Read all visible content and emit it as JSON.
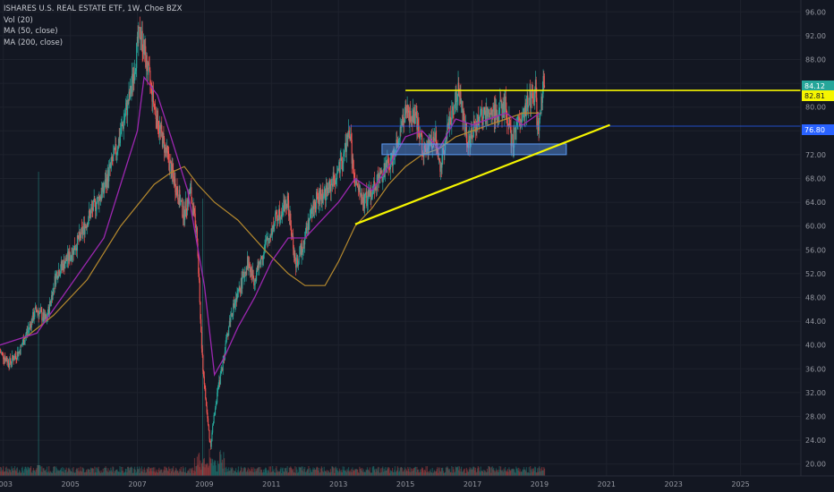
{
  "legend": {
    "title": "ISHARES U.S. REAL ESTATE ETF, 1W, Choe BZX",
    "vol": "Vol (20)",
    "ma50": "MA (50, close)",
    "ma200": "MA (200, close)"
  },
  "chart_data": {
    "type": "candlestick",
    "title": "ISHARES U.S. REAL ESTATE ETF, 1W, Choe BZX",
    "x_axis_labels": [
      "2003",
      "2005",
      "2007",
      "2009",
      "2011",
      "2013",
      "2015",
      "2017",
      "2019",
      "2021",
      "2023",
      "2025"
    ],
    "y_axis_labels": [
      "20.00",
      "24.00",
      "28.00",
      "32.00",
      "36.00",
      "40.00",
      "44.00",
      "48.00",
      "52.00",
      "56.00",
      "60.00",
      "64.00",
      "68.00",
      "72.00",
      "76.00",
      "80.00",
      "84.00",
      "88.00",
      "92.00",
      "96.00"
    ],
    "ylim": [
      18,
      98
    ],
    "xlim": [
      2002.9,
      2026.8
    ],
    "price_keypoints": [
      [
        2002.9,
        39
      ],
      [
        2003.2,
        37
      ],
      [
        2003.5,
        39
      ],
      [
        2004.0,
        46
      ],
      [
        2004.3,
        44
      ],
      [
        2004.6,
        52
      ],
      [
        2005.0,
        55
      ],
      [
        2005.3,
        58
      ],
      [
        2005.6,
        62
      ],
      [
        2006.0,
        66
      ],
      [
        2006.4,
        73
      ],
      [
        2006.8,
        82
      ],
      [
        2007.1,
        93
      ],
      [
        2007.3,
        87
      ],
      [
        2007.6,
        78
      ],
      [
        2007.9,
        72
      ],
      [
        2008.2,
        66
      ],
      [
        2008.4,
        62
      ],
      [
        2008.6,
        66
      ],
      [
        2008.8,
        58
      ],
      [
        2008.95,
        38
      ],
      [
        2009.1,
        28
      ],
      [
        2009.2,
        23
      ],
      [
        2009.35,
        30
      ],
      [
        2009.6,
        38
      ],
      [
        2009.8,
        45
      ],
      [
        2010.0,
        48
      ],
      [
        2010.3,
        54
      ],
      [
        2010.5,
        51
      ],
      [
        2010.8,
        56
      ],
      [
        2011.2,
        62
      ],
      [
        2011.5,
        64
      ],
      [
        2011.75,
        53
      ],
      [
        2011.9,
        56
      ],
      [
        2012.3,
        64
      ],
      [
        2012.7,
        66
      ],
      [
        2013.1,
        70
      ],
      [
        2013.35,
        76
      ],
      [
        2013.5,
        67
      ],
      [
        2013.8,
        64
      ],
      [
        2014.2,
        68
      ],
      [
        2014.6,
        71
      ],
      [
        2015.0,
        79
      ],
      [
        2015.3,
        78
      ],
      [
        2015.6,
        72
      ],
      [
        2015.9,
        75
      ],
      [
        2016.05,
        70
      ],
      [
        2016.3,
        77
      ],
      [
        2016.6,
        83
      ],
      [
        2016.9,
        74
      ],
      [
        2017.2,
        78
      ],
      [
        2017.6,
        79
      ],
      [
        2018.0,
        80
      ],
      [
        2018.2,
        74
      ],
      [
        2018.5,
        79
      ],
      [
        2018.9,
        83
      ],
      [
        2018.97,
        75
      ],
      [
        2019.1,
        83
      ],
      [
        2019.15,
        85
      ]
    ],
    "last_price": 84.12,
    "price_labels": [
      {
        "text": "84.12",
        "color": "#26a69a"
      },
      {
        "text": "82.81",
        "color": "#f5f500"
      },
      {
        "text": "76.80",
        "color": "#2962ff"
      }
    ],
    "ma_50": [
      [
        2002.9,
        40
      ],
      [
        2004.0,
        42
      ],
      [
        2005.0,
        50
      ],
      [
        2006.0,
        58
      ],
      [
        2007.0,
        76
      ],
      [
        2007.2,
        85
      ],
      [
        2007.6,
        82
      ],
      [
        2008.0,
        75
      ],
      [
        2008.5,
        66
      ],
      [
        2009.0,
        50
      ],
      [
        2009.3,
        35
      ],
      [
        2009.6,
        38
      ],
      [
        2010.0,
        43
      ],
      [
        2010.5,
        48
      ],
      [
        2011.0,
        54
      ],
      [
        2011.5,
        58
      ],
      [
        2012.0,
        58
      ],
      [
        2012.5,
        61
      ],
      [
        2013.0,
        64
      ],
      [
        2013.5,
        68
      ],
      [
        2014.0,
        66
      ],
      [
        2014.5,
        70
      ],
      [
        2015.0,
        75
      ],
      [
        2015.5,
        76
      ],
      [
        2016.0,
        73
      ],
      [
        2016.5,
        78
      ],
      [
        2017.0,
        77
      ],
      [
        2017.5,
        78
      ],
      [
        2018.0,
        79
      ],
      [
        2018.5,
        77
      ],
      [
        2019.0,
        79
      ]
    ],
    "ma_200": [
      [
        2003.6,
        41
      ],
      [
        2004.5,
        45
      ],
      [
        2005.5,
        51
      ],
      [
        2006.5,
        60
      ],
      [
        2007.5,
        67
      ],
      [
        2008.0,
        69
      ],
      [
        2008.4,
        70
      ],
      [
        2008.8,
        67
      ],
      [
        2009.3,
        64
      ],
      [
        2010.0,
        61
      ],
      [
        2010.8,
        56
      ],
      [
        2011.5,
        52
      ],
      [
        2012.0,
        50
      ],
      [
        2012.6,
        50
      ],
      [
        2013.0,
        54
      ],
      [
        2013.5,
        60
      ],
      [
        2014.0,
        63
      ],
      [
        2014.5,
        67
      ],
      [
        2015.0,
        70
      ],
      [
        2015.5,
        72
      ],
      [
        2016.0,
        73
      ],
      [
        2016.5,
        75
      ],
      [
        2017.0,
        76
      ],
      [
        2017.5,
        77
      ],
      [
        2018.0,
        78
      ],
      [
        2018.5,
        79
      ],
      [
        2019.0,
        79
      ]
    ],
    "horizontal_levels": [
      {
        "price": 82.81,
        "x_start": 2015.0,
        "color": "#f5f500"
      },
      {
        "price": 76.8,
        "x_start": 2013.3,
        "color": "#2962ff"
      }
    ],
    "support_zone": {
      "x_start": 2014.3,
      "x_end": 2019.8,
      "y_low": 72.0,
      "y_high": 73.8
    },
    "trendline": {
      "points": [
        [
          2013.5,
          60.3
        ],
        [
          2021.1,
          77.0
        ]
      ],
      "color": "#f5f500"
    }
  }
}
